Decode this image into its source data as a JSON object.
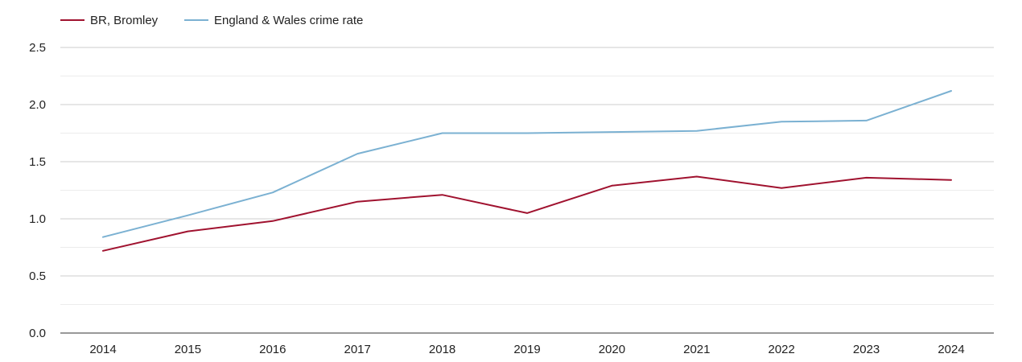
{
  "chart_data": {
    "type": "line",
    "title": "",
    "xlabel": "",
    "ylabel": "",
    "x": [
      "2014",
      "2015",
      "2016",
      "2017",
      "2018",
      "2019",
      "2020",
      "2021",
      "2022",
      "2023",
      "2024"
    ],
    "ylim": [
      0,
      2.5
    ],
    "yticks": [
      "0.0",
      "0.5",
      "1.0",
      "1.5",
      "2.0",
      "2.5"
    ],
    "grid": true,
    "legend_position": "top-left",
    "series": [
      {
        "name": "BR, Bromley",
        "color": "#a0122f",
        "values": [
          0.72,
          0.89,
          0.98,
          1.15,
          1.21,
          1.05,
          1.29,
          1.37,
          1.27,
          1.36,
          1.34
        ]
      },
      {
        "name": "England & Wales crime rate",
        "color": "#7bb1d2",
        "values": [
          0.84,
          1.03,
          1.23,
          1.57,
          1.75,
          1.75,
          1.76,
          1.77,
          1.85,
          1.86,
          2.12
        ]
      }
    ]
  }
}
